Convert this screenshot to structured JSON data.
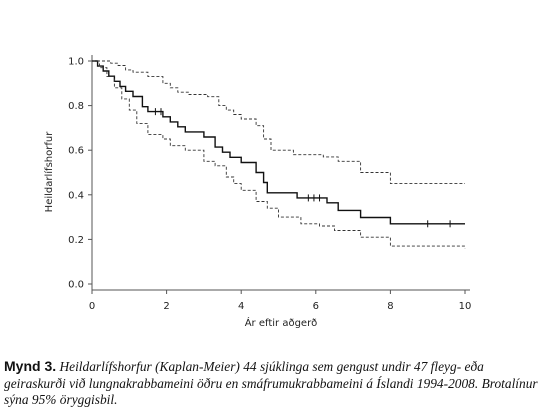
{
  "chart_data": {
    "type": "line",
    "title": "",
    "xlabel": "Ár eftir aðgerð",
    "ylabel": "Heildarlífshorfur",
    "xlim": [
      0,
      10
    ],
    "ylim": [
      0,
      1.0
    ],
    "x_ticks": [
      0,
      2,
      4,
      6,
      8,
      10
    ],
    "y_ticks": [
      0.0,
      0.2,
      0.4,
      0.6,
      0.8,
      1.0
    ],
    "x_tick_labels": [
      "0",
      "2",
      "4",
      "6",
      "8",
      "10"
    ],
    "y_tick_labels": [
      "0.0",
      "0.2",
      "0.4",
      "0.6",
      "0.8",
      "1.0"
    ],
    "grid": false,
    "series": [
      {
        "style": "solid",
        "color": "#111111",
        "x": [
          0,
          0.15,
          0.3,
          0.45,
          0.6,
          0.75,
          0.9,
          1.1,
          1.35,
          1.5,
          1.9,
          2.1,
          2.3,
          2.5,
          3.0,
          3.3,
          3.5,
          3.7,
          4.0,
          4.4,
          4.6,
          4.7,
          5.5,
          6.0,
          6.3,
          6.6,
          7.2,
          8.0,
          10.0
        ],
        "y": [
          1.0,
          0.977,
          0.955,
          0.932,
          0.909,
          0.886,
          0.864,
          0.841,
          0.795,
          0.773,
          0.75,
          0.727,
          0.705,
          0.682,
          0.659,
          0.614,
          0.591,
          0.568,
          0.545,
          0.5,
          0.455,
          0.409,
          0.386,
          0.386,
          0.364,
          0.33,
          0.298,
          0.27,
          0.27
        ]
      },
      {
        "style": "dashed",
        "color": "#333333",
        "x": [
          0,
          0.3,
          0.5,
          0.7,
          0.9,
          1.1,
          1.5,
          1.9,
          2.1,
          2.3,
          2.6,
          3.1,
          3.4,
          3.6,
          3.8,
          4.0,
          4.4,
          4.6,
          4.8,
          5.4,
          6.2,
          6.6,
          7.2,
          8.0,
          10.0
        ],
        "y": [
          1.0,
          1.0,
          0.99,
          0.98,
          0.96,
          0.95,
          0.93,
          0.9,
          0.88,
          0.86,
          0.85,
          0.84,
          0.8,
          0.78,
          0.76,
          0.74,
          0.71,
          0.65,
          0.6,
          0.58,
          0.57,
          0.55,
          0.5,
          0.45,
          0.45
        ]
      },
      {
        "style": "dashed",
        "color": "#333333",
        "x": [
          0,
          0.2,
          0.4,
          0.6,
          0.8,
          1.0,
          1.2,
          1.5,
          1.9,
          2.1,
          2.5,
          3.0,
          3.3,
          3.6,
          3.8,
          4.0,
          4.4,
          4.7,
          5.0,
          5.6,
          6.1,
          6.5,
          7.2,
          8.0,
          10.0
        ],
        "y": [
          1.0,
          0.97,
          0.93,
          0.88,
          0.83,
          0.78,
          0.72,
          0.67,
          0.65,
          0.62,
          0.6,
          0.55,
          0.53,
          0.48,
          0.45,
          0.42,
          0.37,
          0.34,
          0.3,
          0.27,
          0.26,
          0.24,
          0.21,
          0.17,
          0.16
        ]
      }
    ],
    "censor_marks": [
      {
        "x": 1.7,
        "y": 0.773
      },
      {
        "x": 1.85,
        "y": 0.773
      },
      {
        "x": 5.8,
        "y": 0.386
      },
      {
        "x": 5.95,
        "y": 0.386
      },
      {
        "x": 6.1,
        "y": 0.386
      },
      {
        "x": 9.0,
        "y": 0.27
      },
      {
        "x": 9.6,
        "y": 0.27
      }
    ]
  },
  "caption": {
    "label": "Mynd 3.",
    "text": " Heildarlífshorfur (Kaplan-Meier) 44 sjúklinga sem gengust undir 47 fleyg- eða geiraskurði við lungnakrabbameini öðru en smáfrumukrabbameini á Íslandi 1994-2008. Brotalínur sýna 95% öryggisbil."
  }
}
